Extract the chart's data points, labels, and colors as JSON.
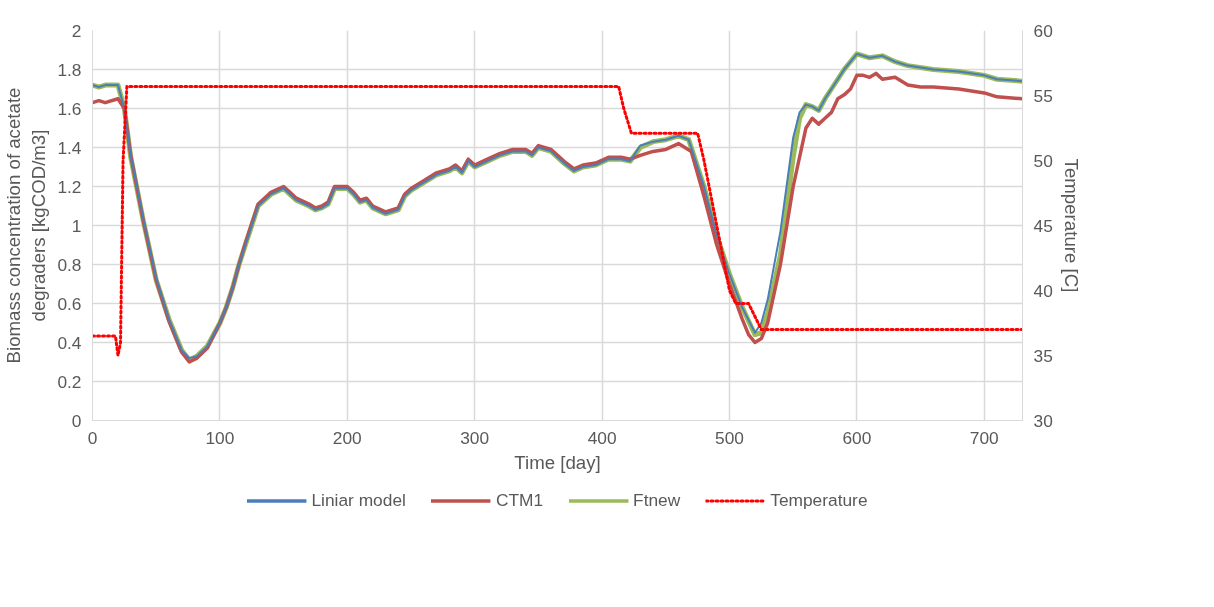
{
  "chart_data": {
    "type": "line",
    "xlabel": "Time [day]",
    "ylabel": "Biomass concentration of acetate degraders [kgCOD/m3]",
    "y2label": "Temperature [C]",
    "xlim": [
      0,
      730
    ],
    "xticks": [
      0,
      100,
      200,
      300,
      400,
      500,
      600,
      700
    ],
    "ylim": [
      0,
      2
    ],
    "yticks": [
      0,
      0.2,
      0.4,
      0.6,
      0.8,
      1,
      1.2,
      1.4,
      1.6,
      1.8,
      2
    ],
    "y2lim": [
      30,
      60
    ],
    "y2ticks": [
      30,
      35,
      40,
      45,
      50,
      55,
      60
    ],
    "grid": true,
    "legend": "bottom",
    "line_style": "solid",
    "marker": "none",
    "series": [
      {
        "name": "Liniar model",
        "color": "#4a7ebb",
        "x": [
          0,
          5,
          10,
          20,
          25,
          30,
          40,
          50,
          60,
          70,
          76,
          82,
          90,
          100,
          105,
          110,
          115,
          120,
          125,
          130,
          135,
          140,
          150,
          155,
          160,
          170,
          175,
          180,
          185,
          190,
          200,
          205,
          210,
          215,
          220,
          230,
          235,
          240,
          245,
          250,
          260,
          270,
          280,
          285,
          290,
          295,
          300,
          310,
          320,
          330,
          340,
          345,
          350,
          360,
          370,
          378,
          385,
          395,
          405,
          415,
          422,
          430,
          440,
          450,
          460,
          468,
          480,
          490,
          500,
          510,
          520,
          525,
          530,
          540,
          550,
          555,
          560,
          565,
          570,
          575,
          585,
          590,
          600,
          610,
          620,
          630,
          640,
          660,
          680,
          700,
          710,
          730
        ],
        "values": [
          1.72,
          1.71,
          1.72,
          1.72,
          1.6,
          1.36,
          1.03,
          0.73,
          0.52,
          0.36,
          0.32,
          0.33,
          0.38,
          0.5,
          0.58,
          0.68,
          0.8,
          0.9,
          1.0,
          1.1,
          1.13,
          1.16,
          1.19,
          1.16,
          1.13,
          1.1,
          1.08,
          1.09,
          1.11,
          1.19,
          1.19,
          1.16,
          1.12,
          1.13,
          1.09,
          1.06,
          1.07,
          1.08,
          1.15,
          1.18,
          1.22,
          1.26,
          1.28,
          1.3,
          1.27,
          1.33,
          1.3,
          1.33,
          1.36,
          1.38,
          1.38,
          1.36,
          1.4,
          1.38,
          1.32,
          1.28,
          1.3,
          1.31,
          1.34,
          1.34,
          1.33,
          1.41,
          1.43,
          1.44,
          1.46,
          1.44,
          1.2,
          0.95,
          0.75,
          0.58,
          0.45,
          0.5,
          0.62,
          0.97,
          1.45,
          1.58,
          1.62,
          1.61,
          1.59,
          1.65,
          1.75,
          1.8,
          1.88,
          1.86,
          1.87,
          1.84,
          1.82,
          1.8,
          1.79,
          1.77,
          1.75,
          1.74
        ]
      },
      {
        "name": "CTM1",
        "color": "#c0504d",
        "x": [
          0,
          5,
          10,
          20,
          25,
          30,
          40,
          50,
          60,
          70,
          76,
          82,
          90,
          100,
          105,
          110,
          115,
          120,
          125,
          130,
          135,
          140,
          150,
          155,
          160,
          170,
          175,
          180,
          185,
          190,
          200,
          205,
          210,
          215,
          220,
          230,
          235,
          240,
          245,
          250,
          260,
          270,
          280,
          285,
          290,
          295,
          300,
          310,
          320,
          330,
          340,
          345,
          350,
          360,
          370,
          378,
          385,
          395,
          405,
          415,
          422,
          430,
          440,
          450,
          460,
          470,
          480,
          490,
          500,
          510,
          515,
          520,
          525,
          530,
          540,
          550,
          560,
          565,
          570,
          575,
          580,
          585,
          590,
          595,
          600,
          605,
          610,
          615,
          620,
          630,
          640,
          650,
          660,
          680,
          700,
          710,
          730
        ],
        "values": [
          1.63,
          1.64,
          1.63,
          1.65,
          1.6,
          1.36,
          1.02,
          0.72,
          0.51,
          0.35,
          0.3,
          0.32,
          0.37,
          0.5,
          0.58,
          0.68,
          0.8,
          0.91,
          1.01,
          1.11,
          1.14,
          1.17,
          1.2,
          1.17,
          1.14,
          1.11,
          1.09,
          1.1,
          1.12,
          1.2,
          1.2,
          1.17,
          1.13,
          1.14,
          1.1,
          1.07,
          1.08,
          1.09,
          1.16,
          1.19,
          1.23,
          1.27,
          1.29,
          1.31,
          1.28,
          1.34,
          1.31,
          1.34,
          1.37,
          1.39,
          1.39,
          1.37,
          1.41,
          1.39,
          1.33,
          1.29,
          1.31,
          1.32,
          1.35,
          1.35,
          1.34,
          1.36,
          1.38,
          1.39,
          1.42,
          1.38,
          1.15,
          0.9,
          0.7,
          0.52,
          0.44,
          0.4,
          0.42,
          0.5,
          0.8,
          1.2,
          1.5,
          1.55,
          1.52,
          1.55,
          1.58,
          1.65,
          1.67,
          1.7,
          1.77,
          1.77,
          1.76,
          1.78,
          1.75,
          1.76,
          1.72,
          1.71,
          1.71,
          1.7,
          1.68,
          1.66,
          1.65
        ]
      },
      {
        "name": "Ftnew",
        "color": "#9bbb59",
        "x": [
          0,
          5,
          10,
          20,
          25,
          30,
          40,
          50,
          60,
          70,
          76,
          82,
          90,
          100,
          105,
          110,
          115,
          120,
          125,
          130,
          135,
          140,
          150,
          155,
          160,
          170,
          175,
          180,
          185,
          190,
          200,
          205,
          210,
          215,
          220,
          230,
          235,
          240,
          245,
          250,
          260,
          270,
          280,
          285,
          290,
          295,
          300,
          310,
          320,
          330,
          340,
          345,
          350,
          360,
          370,
          378,
          385,
          395,
          405,
          415,
          422,
          430,
          440,
          450,
          460,
          468,
          480,
          490,
          500,
          510,
          520,
          525,
          530,
          540,
          550,
          555,
          560,
          565,
          570,
          575,
          585,
          590,
          600,
          610,
          620,
          630,
          640,
          660,
          680,
          700,
          710,
          730
        ],
        "values": [
          1.72,
          1.71,
          1.72,
          1.72,
          1.6,
          1.35,
          1.02,
          0.72,
          0.52,
          0.36,
          0.31,
          0.33,
          0.38,
          0.5,
          0.58,
          0.68,
          0.8,
          0.9,
          1.0,
          1.1,
          1.13,
          1.16,
          1.19,
          1.16,
          1.13,
          1.1,
          1.08,
          1.09,
          1.11,
          1.19,
          1.19,
          1.16,
          1.12,
          1.13,
          1.09,
          1.06,
          1.07,
          1.08,
          1.15,
          1.18,
          1.22,
          1.26,
          1.28,
          1.3,
          1.27,
          1.33,
          1.3,
          1.33,
          1.36,
          1.38,
          1.38,
          1.36,
          1.4,
          1.38,
          1.32,
          1.28,
          1.3,
          1.31,
          1.34,
          1.34,
          1.33,
          1.4,
          1.43,
          1.44,
          1.46,
          1.44,
          1.2,
          0.95,
          0.75,
          0.58,
          0.44,
          0.45,
          0.55,
          0.85,
          1.35,
          1.55,
          1.62,
          1.61,
          1.59,
          1.65,
          1.75,
          1.8,
          1.88,
          1.86,
          1.87,
          1.84,
          1.82,
          1.8,
          1.79,
          1.77,
          1.75,
          1.74
        ]
      },
      {
        "name": "Temperature",
        "color": "#ff0000",
        "axis": "y2",
        "line_style": "dotted",
        "x": [
          0,
          18,
          20,
          22,
          24,
          27,
          413,
          417,
          423,
          475,
          480,
          490,
          500,
          505,
          515,
          520,
          525,
          730
        ],
        "values": [
          36.5,
          36.5,
          35,
          36,
          50,
          55.7,
          55.7,
          54,
          52.1,
          52.1,
          50,
          45,
          40,
          39,
          39,
          38,
          37,
          37
        ]
      }
    ]
  }
}
